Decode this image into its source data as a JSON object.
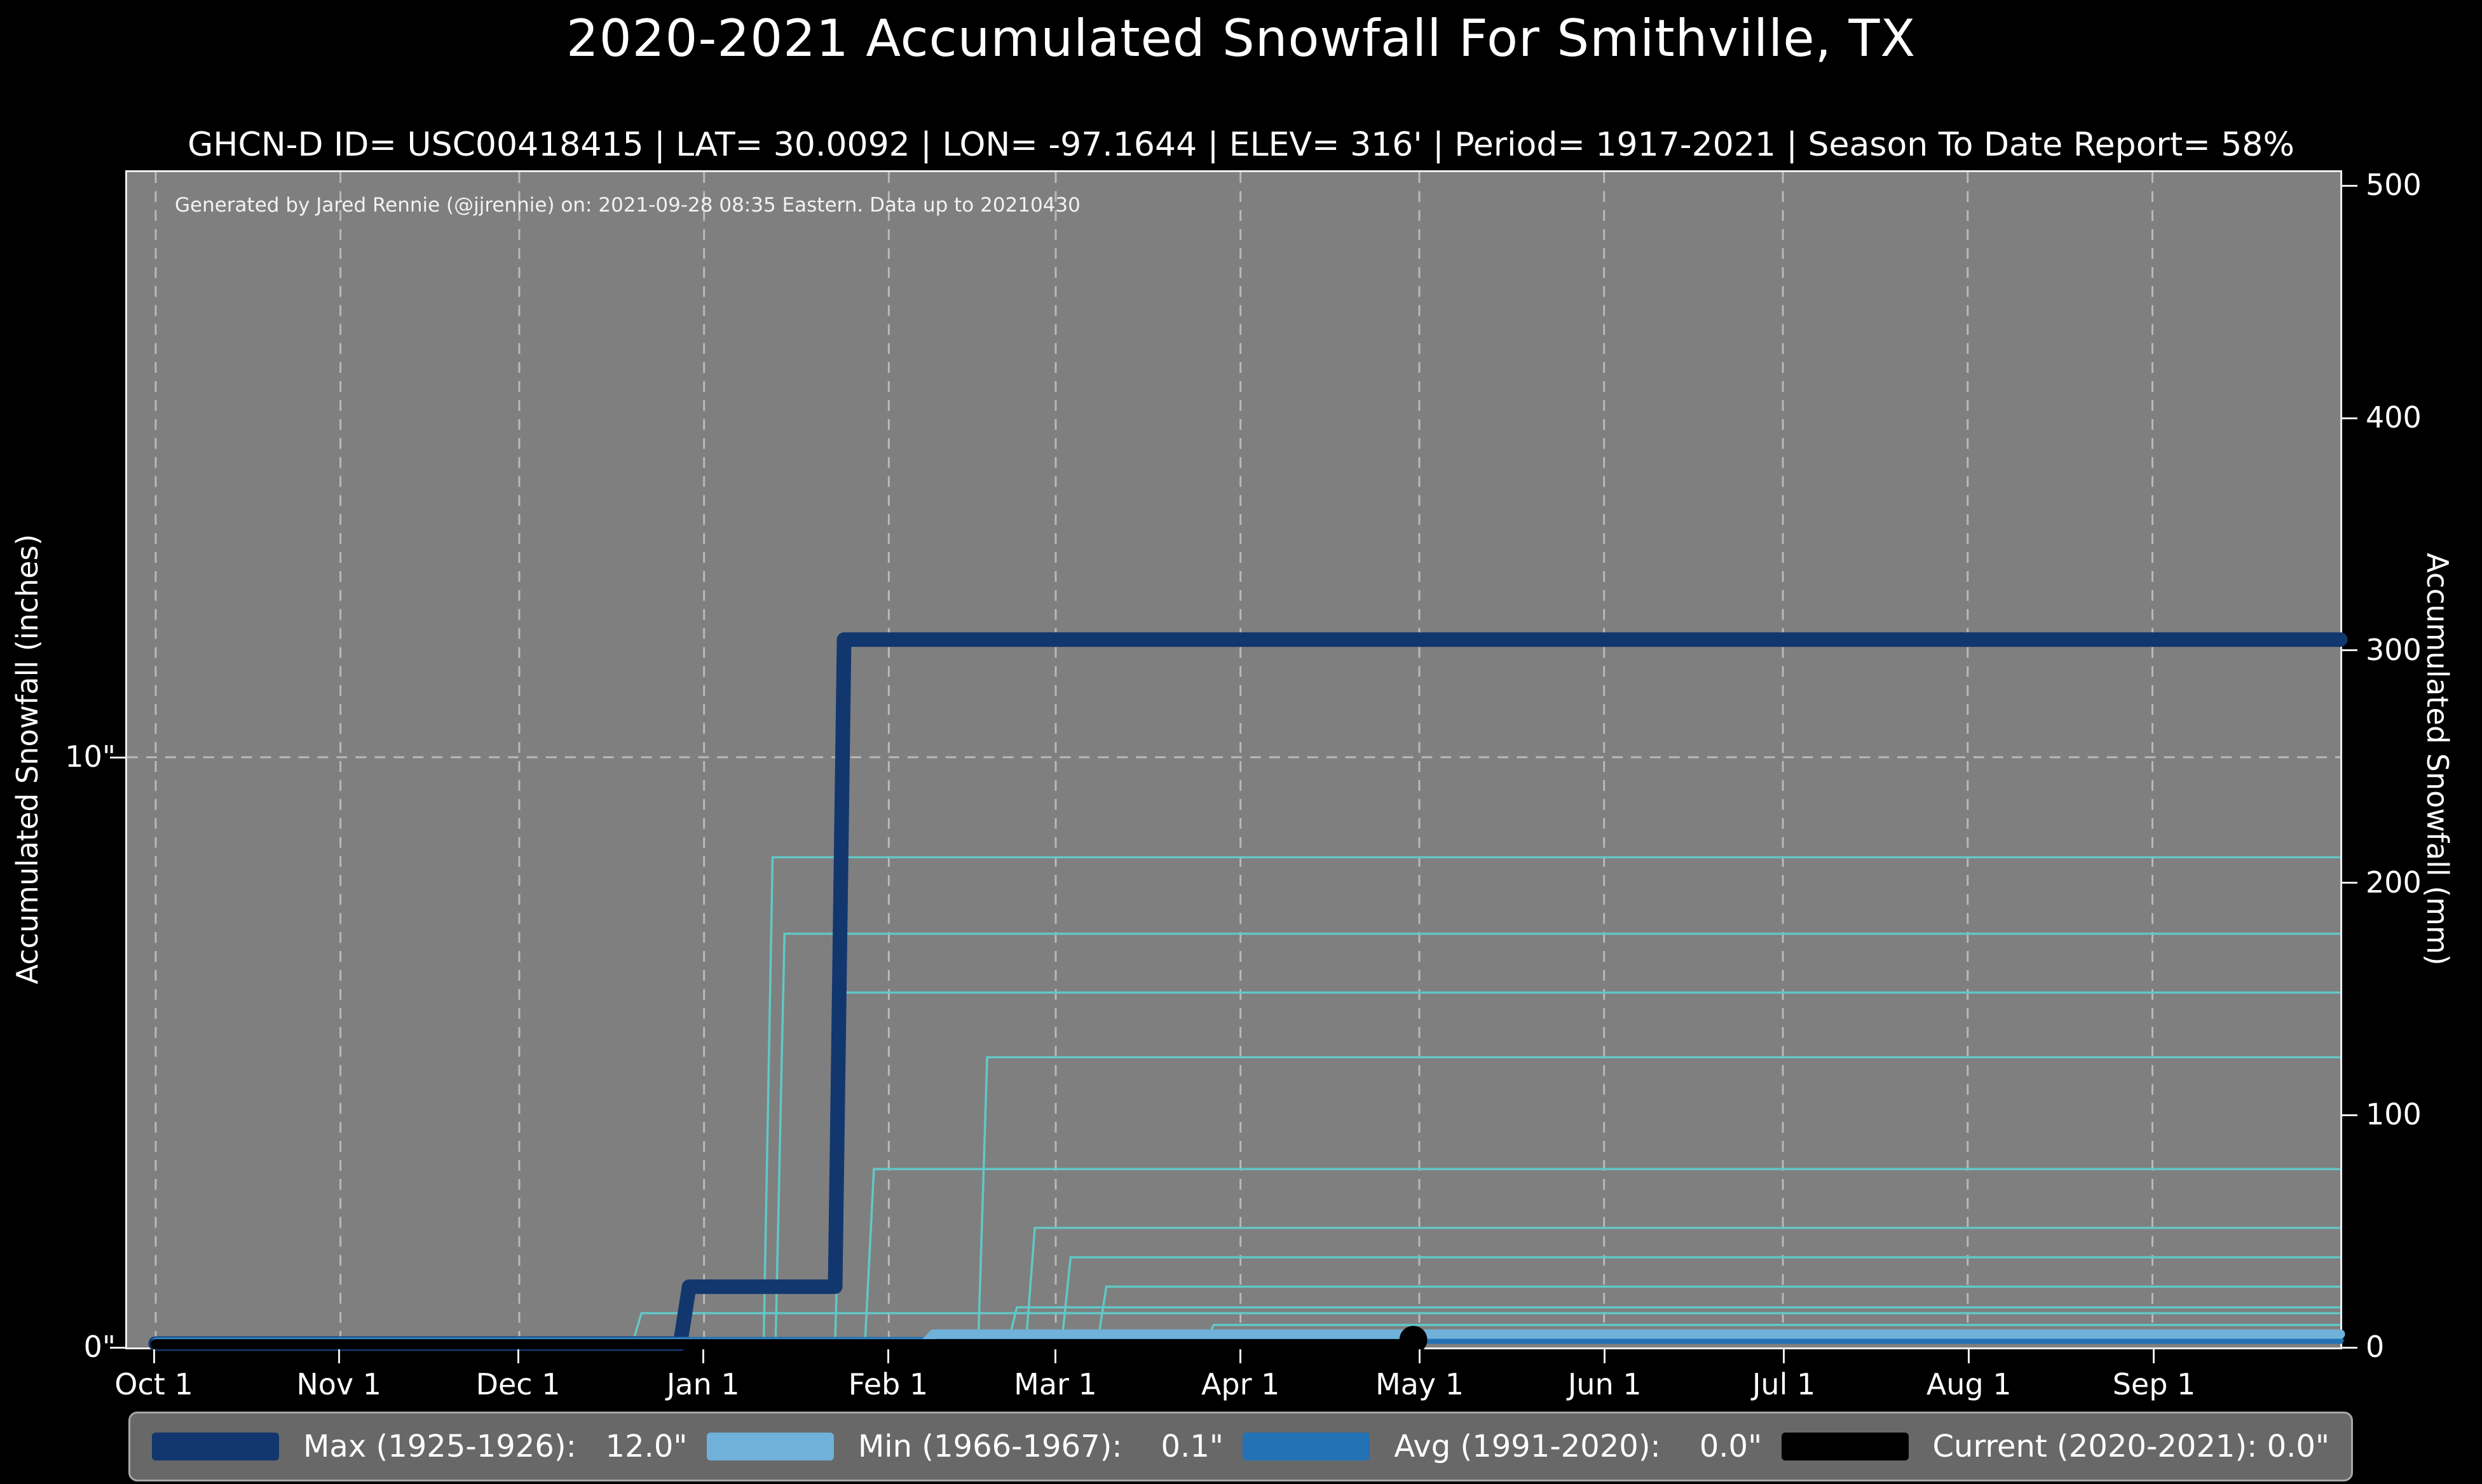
{
  "title": "2020-2021 Accumulated Snowfall For Smithville, TX",
  "subtitle": "GHCN-D ID= USC00418415 | LAT= 30.0092 | LON= -97.1644 | ELEV= 316' | Period= 1917-2021 | Season To Date Report= 58%",
  "note": "Generated by Jared Rennie (@jjrennie) on: 2021-09-28 08:35 Eastern. Data up to 20210430",
  "colors": {
    "background": "#000000",
    "plot_background": "#7f7f7f",
    "grid": "#b9b9b9",
    "axis_text": "#ffffff",
    "max_line": "#12376f",
    "min_line": "#6fb1d9",
    "avg_line": "#2272b5",
    "current_line": "#000000",
    "background_seasons": "#62c8c6",
    "legend_background": "#686868",
    "legend_border": "#a8a8a8"
  },
  "axes": {
    "x": {
      "tick_labels": [
        "Oct 1",
        "Nov 1",
        "Dec 1",
        "Jan 1",
        "Feb 1",
        "Mar 1",
        "Apr 1",
        "May 1",
        "Jun 1",
        "Jul 1",
        "Aug 1",
        "Sep 1"
      ],
      "tick_day_offsets": [
        0,
        31,
        61,
        92,
        123,
        151,
        182,
        212,
        243,
        273,
        304,
        335
      ],
      "season_span_days": 364
    },
    "y_left": {
      "label": "Accumulated Snowfall (inches)",
      "ticks": [
        {
          "label": "0\"",
          "inches": 0
        },
        {
          "label": "10\"",
          "inches": 10
        }
      ],
      "range_inches": [
        0,
        20
      ]
    },
    "y_right": {
      "label": "Accumulated Snowfall (mm)",
      "ticks_mm": [
        0,
        100,
        200,
        300,
        400,
        500
      ],
      "range_mm": [
        0,
        508
      ]
    }
  },
  "legend": {
    "items": [
      {
        "label": "Max (1925-1926):   12.0\"",
        "color": "#12376f"
      },
      {
        "label": "Min (1966-1967):    0.1\"",
        "color": "#6fb1d9"
      },
      {
        "label": "Avg (1991-2020):    0.0\"",
        "color": "#2272b5"
      },
      {
        "label": "Current (2020-2021): 0.0\"",
        "color": "#000000"
      }
    ]
  },
  "chart_data": {
    "type": "line",
    "title": "2020-2021 Accumulated Snowfall For Smithville, TX",
    "x_unit": "days since Oct 1",
    "y_unit": "inches (left axis) / mm (right axis)",
    "xlabel": "",
    "ylabel_left": "Accumulated Snowfall (inches)",
    "ylabel_right": "Accumulated Snowfall (mm)",
    "ylim_inches": [
      0,
      20
    ],
    "grid": {
      "vertical_dashed_at_month_ticks": true,
      "horizontal_dashed_at_inches": [
        10
      ]
    },
    "series": [
      {
        "name": "Max (1925-1926)",
        "season_total": "12.0\"",
        "color": "#12376f",
        "width": 23,
        "points": [
          [
            0,
            0
          ],
          [
            88,
            0
          ],
          [
            89,
            1.0
          ],
          [
            114,
            1.0
          ],
          [
            115,
            12.0
          ],
          [
            364,
            12.0
          ]
        ]
      },
      {
        "name": "Min (1966-1967)",
        "season_total": "0.1\"",
        "color": "#6fb1d9",
        "width": 15,
        "points": [
          [
            0,
            0
          ],
          [
            129,
            0
          ],
          [
            130,
            0.1
          ],
          [
            364,
            0.1
          ]
        ]
      },
      {
        "name": "Avg (1991-2020)",
        "season_total": "0.0\"",
        "color": "#2272b5",
        "width": 11,
        "points": [
          [
            0,
            0
          ],
          [
            364,
            0
          ]
        ]
      },
      {
        "name": "Current (2020-2021)",
        "season_total": "0.0\"",
        "color": "#000000",
        "width": 16,
        "points": [
          [
            0,
            0
          ],
          [
            211,
            0
          ]
        ],
        "end_marker": {
          "day": 211,
          "value": 0
        }
      }
    ],
    "background_seasons": {
      "color": "#62c8c6",
      "description": "thin unlabeled accumulation step-traces of other seasons 1917-2021 (values approximate, read from pixels)",
      "lines": [
        {
          "rise_day": 80,
          "inches": 0.55
        },
        {
          "rise_day": 102,
          "inches": 8.3
        },
        {
          "rise_day": 104,
          "inches": 7.0
        },
        {
          "rise_day": 114,
          "inches": 6.0
        },
        {
          "rise_day": 119,
          "inches": 3.0
        },
        {
          "rise_day": 138,
          "inches": 4.9
        },
        {
          "rise_day": 143,
          "inches": 0.65
        },
        {
          "rise_day": 146,
          "inches": 2.0
        },
        {
          "rise_day": 152,
          "inches": 1.5
        },
        {
          "rise_day": 158,
          "inches": 1.0
        },
        {
          "rise_day": 176,
          "inches": 0.35
        },
        {
          "rise_day": 184,
          "inches": 0.25
        }
      ]
    }
  }
}
